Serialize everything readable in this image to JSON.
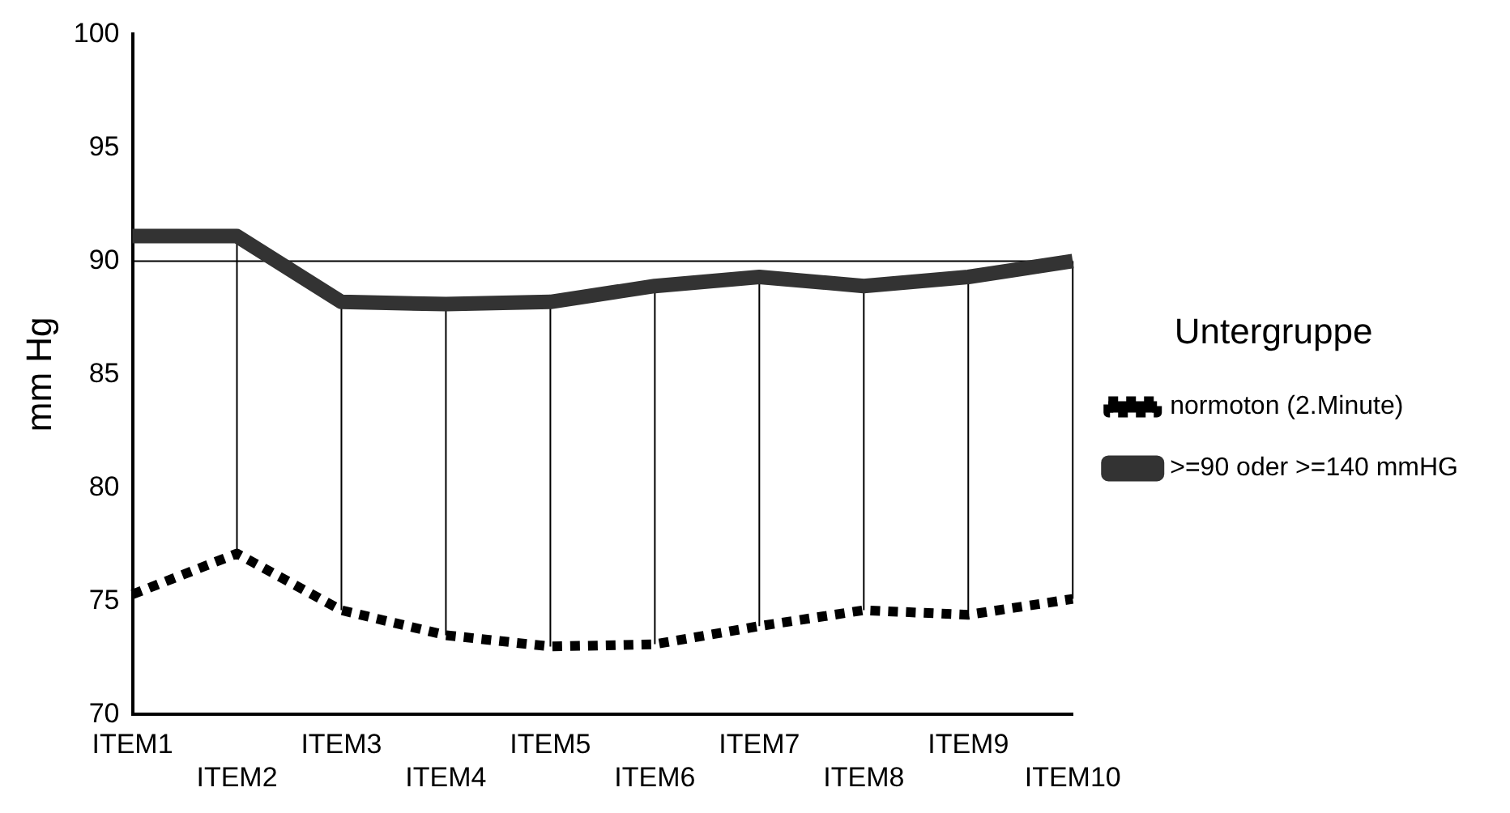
{
  "chart_data": {
    "type": "line",
    "ylabel": "mm Hg",
    "legend_title": "Untergruppe",
    "legend": "right",
    "grid": false,
    "marker": "none",
    "categories": [
      "ITEM1",
      "ITEM2",
      "ITEM3",
      "ITEM4",
      "ITEM5",
      "ITEM6",
      "ITEM7",
      "ITEM8",
      "ITEM9",
      "ITEM10"
    ],
    "series": [
      {
        "name": "normoton (2.Minute)",
        "color": "#000000",
        "line_style": "dotted",
        "values": [
          75.3,
          77.1,
          74.6,
          73.5,
          73.0,
          73.1,
          73.9,
          74.6,
          74.4,
          75.1
        ]
      },
      {
        "name": ">=90 oder >=140 mmHG",
        "color": "#333333",
        "line_style": "solid",
        "values": [
          91.1,
          91.1,
          88.2,
          88.1,
          88.2,
          88.9,
          89.3,
          88.9,
          89.3,
          90.0
        ],
        "errors": [
          [
            75.3,
            91.1
          ],
          [
            77.1,
            91.1
          ],
          [
            74.6,
            88.2
          ],
          [
            73.5,
            88.1
          ],
          [
            73.0,
            88.2
          ],
          [
            73.1,
            88.9
          ],
          [
            73.9,
            89.3
          ],
          [
            74.6,
            88.9
          ],
          [
            74.4,
            89.3
          ],
          [
            75.1,
            90.0
          ]
        ]
      }
    ],
    "ylim": [
      70,
      100
    ],
    "yticks": [
      70,
      75,
      80,
      85,
      90,
      95,
      100
    ],
    "ref_lines": [
      {
        "axis": "y",
        "value": 90,
        "color": "#000000"
      }
    ]
  }
}
